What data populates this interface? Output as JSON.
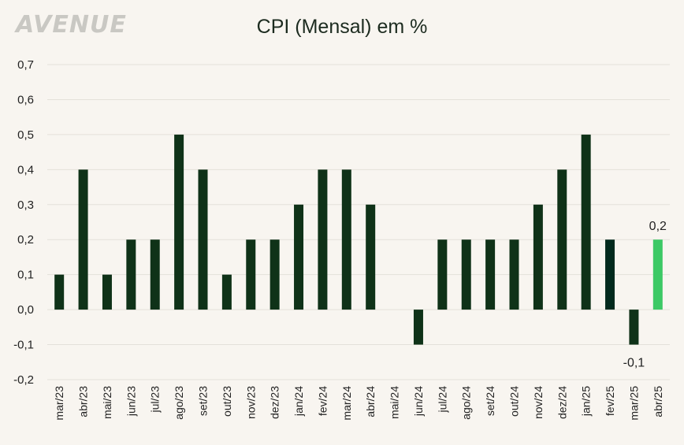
{
  "logo": "AVENUE",
  "colors": {
    "bar": "#0f3218",
    "bar_highlight_dark": "#022a1d",
    "bar_highlight_light": "#3cc965",
    "grid": "#e4e1da"
  },
  "chart_data": {
    "type": "bar",
    "title": "CPI (Mensal) em %",
    "categories": [
      "mar/23",
      "abr/23",
      "mai/23",
      "jun/23",
      "jul/23",
      "ago/23",
      "set/23",
      "out/23",
      "nov/23",
      "dez/23",
      "jan/24",
      "fev/24",
      "mar/24",
      "abr/24",
      "mai/24",
      "jun/24",
      "jul/24",
      "ago/24",
      "set/24",
      "out/24",
      "nov/24",
      "dez/24",
      "jan/25",
      "fev/25",
      "mar/25",
      "abr/25"
    ],
    "values": [
      0.1,
      0.4,
      0.1,
      0.2,
      0.2,
      0.5,
      0.4,
      0.1,
      0.2,
      0.2,
      0.3,
      0.4,
      0.4,
      0.3,
      0.0,
      -0.1,
      0.2,
      0.2,
      0.2,
      0.2,
      0.3,
      0.4,
      0.5,
      0.2,
      -0.1,
      0.2
    ],
    "y_ticks": [
      "-0,2",
      "-0,1",
      "0,0",
      "0,1",
      "0,2",
      "0,3",
      "0,4",
      "0,5",
      "0,6",
      "0,7"
    ],
    "y_tick_values": [
      -0.2,
      -0.1,
      0.0,
      0.1,
      0.2,
      0.3,
      0.4,
      0.5,
      0.6,
      0.7
    ],
    "ylim": [
      -0.2,
      0.7
    ],
    "grid": true,
    "data_labels": [
      {
        "category": "mar/25",
        "text": "-0,1"
      },
      {
        "category": "abr/25",
        "text": "0,2"
      }
    ],
    "highlight": [
      {
        "category": "fev/25",
        "color": "#022a1d"
      },
      {
        "category": "abr/25",
        "color": "#3cc965"
      }
    ]
  }
}
